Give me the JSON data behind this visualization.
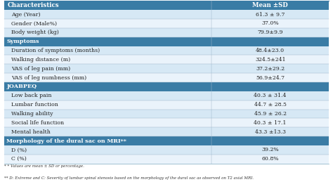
{
  "header": [
    "Characteristics",
    "Mean ±SD"
  ],
  "header_bg": "#3a7ca5",
  "header_text_color": "#ffffff",
  "section_bg": "#3a7ca5",
  "section_text_color": "#ffffff",
  "row_bg_light": "#d6e8f5",
  "row_bg_white": "#eaf3fb",
  "row_text_color": "#222222",
  "col_split": 0.635,
  "all_rows": [
    {
      "type": "header",
      "label": "Characteristics",
      "value": "Mean ±SD"
    },
    {
      "type": "data_light",
      "label": "Age (Year)",
      "value": "61.3 ± 9.7"
    },
    {
      "type": "data_white",
      "label": "Gender (Male%)",
      "value": "37.0%"
    },
    {
      "type": "data_light",
      "label": "Body weight (kg)",
      "value": "79.9±9.9"
    },
    {
      "type": "section",
      "label": "Symptoms",
      "value": ""
    },
    {
      "type": "data_light",
      "label": "Duration of symptoms (months)",
      "value": "48.4±23.0"
    },
    {
      "type": "data_white",
      "label": "Walking distance (m)",
      "value": "324.5±241"
    },
    {
      "type": "data_light",
      "label": "VAS of leg pain (mm)",
      "value": "37.2±29.2"
    },
    {
      "type": "data_white",
      "label": "VAS of leg numbness (mm)",
      "value": "56.9±24.7"
    },
    {
      "type": "section",
      "label": "JOABPEQ",
      "value": ""
    },
    {
      "type": "data_light",
      "label": "Low back pain",
      "value": "40.3 ± 31.4"
    },
    {
      "type": "data_white",
      "label": "Lumbar function",
      "value": "44.7 ± 28.5"
    },
    {
      "type": "data_light",
      "label": "Walking ability",
      "value": "45.9 ± 26.2"
    },
    {
      "type": "data_white",
      "label": "Social life function",
      "value": "40.3 ± 17.1"
    },
    {
      "type": "data_light",
      "label": "Mental health",
      "value": "43.3 ±13.3"
    },
    {
      "type": "section",
      "label": "Morphology of the dural sac on MRI**",
      "value": ""
    },
    {
      "type": "data_light",
      "label": "D (%)",
      "value": "39.2%"
    },
    {
      "type": "data_white",
      "label": "C (%)",
      "value": "60.8%"
    }
  ],
  "footnotes": [
    "* * Values are mean ± SD or percentage.",
    "** D: Extreme and C: Severity of lumbar spinal stenosis based on the morphology of the dural sac as observed on T2 axial MRI."
  ]
}
